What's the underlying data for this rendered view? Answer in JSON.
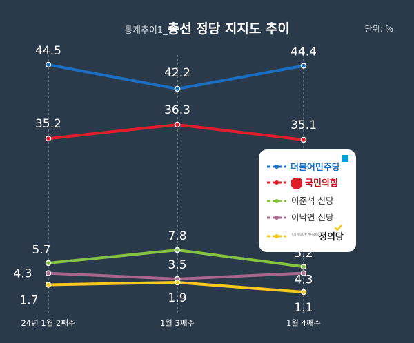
{
  "header": {
    "title_prefix": "통계추이1_",
    "title_main": "총선 정당 지지도 추이",
    "unit": "단위: %"
  },
  "chart_data": {
    "type": "line",
    "categories": [
      "24년 1월 2째주",
      "1월 3째주",
      "1월 4째주"
    ],
    "series": [
      {
        "name": "더불어민주당",
        "values": [
          44.5,
          42.2,
          44.4
        ],
        "color": "#1a6fc4"
      },
      {
        "name": "국민의힘",
        "values": [
          35.2,
          36.3,
          35.1
        ],
        "color": "#e01e2b"
      },
      {
        "name": "이준석 신당",
        "values": [
          5.7,
          7.8,
          5.2
        ],
        "color": "#84c441"
      },
      {
        "name": "이낙연 신당",
        "values": [
          4.3,
          3.5,
          4.3
        ],
        "color": "#a8668f"
      },
      {
        "name": "정의당",
        "values": [
          1.7,
          1.9,
          1.1
        ],
        "color": "#f7c81d"
      }
    ],
    "legend_placement": "right",
    "grid": "dashed vertical lines at each category"
  },
  "legend": {
    "justice_small_text": "노동이 당당한 선진국으로",
    "accent_colors": {
      "democratic_flag": "#00a0e0",
      "justice_check": "#f7c81d",
      "justice_text": "#1a1a1a"
    }
  }
}
